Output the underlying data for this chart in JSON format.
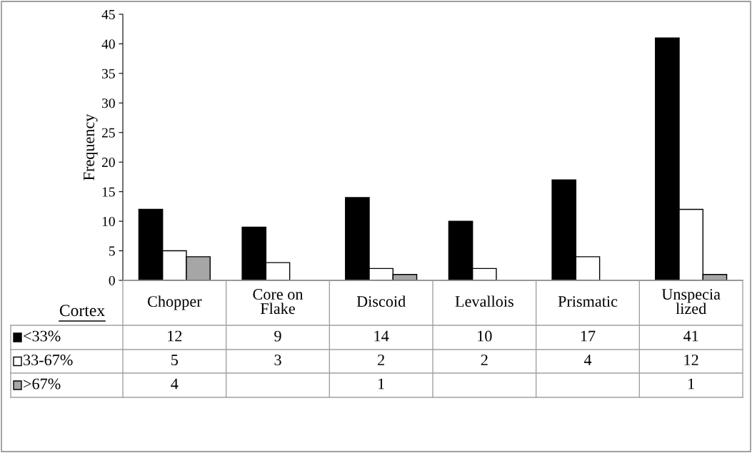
{
  "chart_data": {
    "type": "bar",
    "ylabel": "Frequency",
    "legend_title": "Cortex",
    "legend": "bottom left",
    "data_labels": true,
    "categories": [
      "Chopper",
      "Core on\nFlake",
      "Discoid",
      "Levallois",
      "Prismatic",
      "Unspecia\nlized"
    ],
    "series": [
      {
        "name": "<33%",
        "color": "#000000",
        "values": [
          12,
          9,
          14,
          10,
          17,
          41
        ]
      },
      {
        "name": "33-67%",
        "color": "#ffffff",
        "values": [
          5,
          3,
          2,
          2,
          4,
          12
        ]
      },
      {
        "name": ">67%",
        "color": "#a6a6a6",
        "values": [
          4,
          null,
          1,
          null,
          null,
          1
        ]
      }
    ],
    "ylim": [
      0,
      45
    ],
    "yticks": [
      0,
      5,
      10,
      15,
      20,
      25,
      30,
      35,
      40,
      45
    ],
    "grid": false
  }
}
